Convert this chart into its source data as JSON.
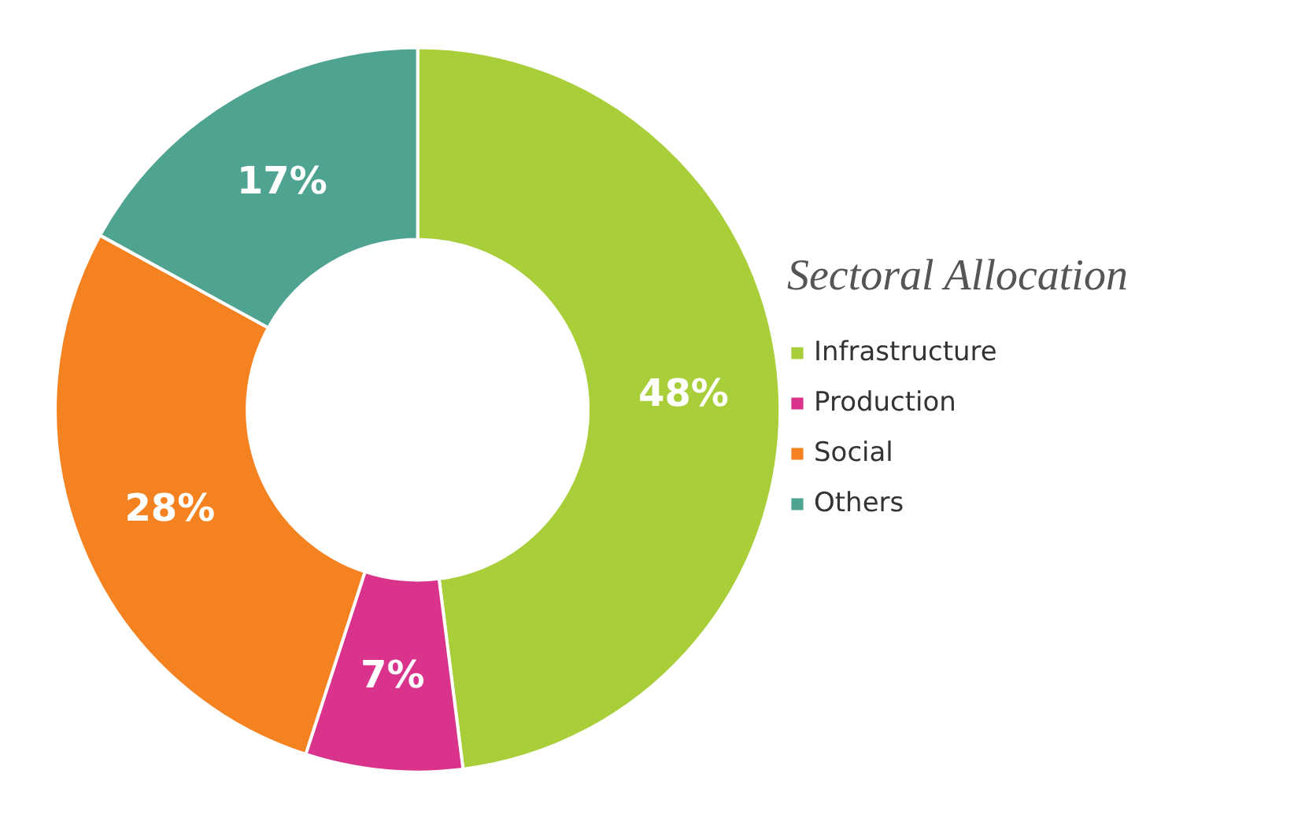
{
  "chart_data": {
    "type": "donut",
    "legend_title": "Sectoral Allocation",
    "categories": [
      "Infrastructure",
      "Production",
      "Social",
      "Others"
    ],
    "values": [
      48,
      7,
      28,
      17
    ],
    "colors": [
      "#a8cf3a",
      "#d9338c",
      "#f58220",
      "#4fa391"
    ],
    "value_labels": [
      "48%",
      "7%",
      "28%",
      "17%"
    ],
    "legend": "right"
  }
}
